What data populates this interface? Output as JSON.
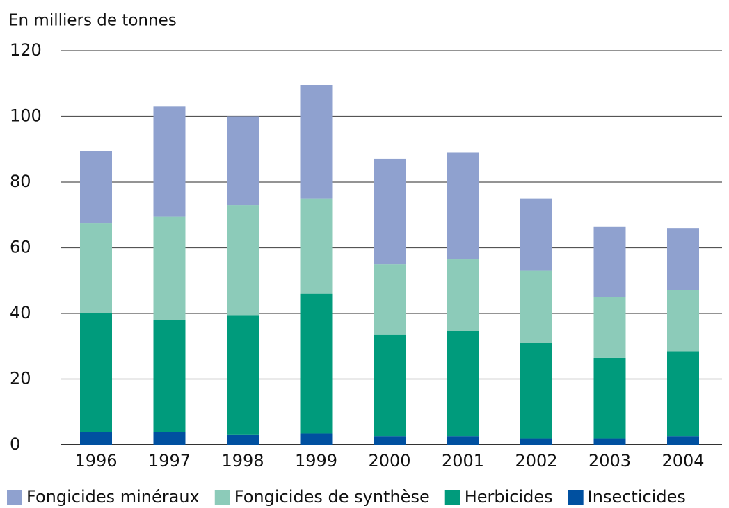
{
  "chart_data": {
    "type": "stacked_bar",
    "title": "En milliers de tonnes",
    "categories": [
      "1996",
      "1997",
      "1998",
      "1999",
      "2000",
      "2001",
      "2002",
      "2003",
      "2004"
    ],
    "series": [
      {
        "name": "Fongicides minéraux",
        "color": "#8fa1cf",
        "values": [
          22,
          33.5,
          27,
          34.5,
          32,
          32.5,
          22,
          21.5,
          19
        ]
      },
      {
        "name": "Fongicides de synthèse",
        "color": "#8ccbb9",
        "values": [
          27.5,
          31.5,
          33.5,
          29,
          21.5,
          22,
          22,
          18.5,
          18.5
        ]
      },
      {
        "name": "Herbicides",
        "color": "#009b7c",
        "values": [
          36,
          34,
          36.5,
          42.5,
          31,
          32,
          29,
          24.5,
          26
        ]
      },
      {
        "name": "Insecticides",
        "color": "#0050a0",
        "values": [
          4,
          4,
          3,
          3.5,
          2.5,
          2.5,
          2,
          2,
          2.5
        ]
      }
    ],
    "ylim": [
      0,
      120
    ],
    "yticks": [
      0,
      20,
      40,
      60,
      80,
      100,
      120
    ],
    "grid": true,
    "legend": "bottom"
  }
}
